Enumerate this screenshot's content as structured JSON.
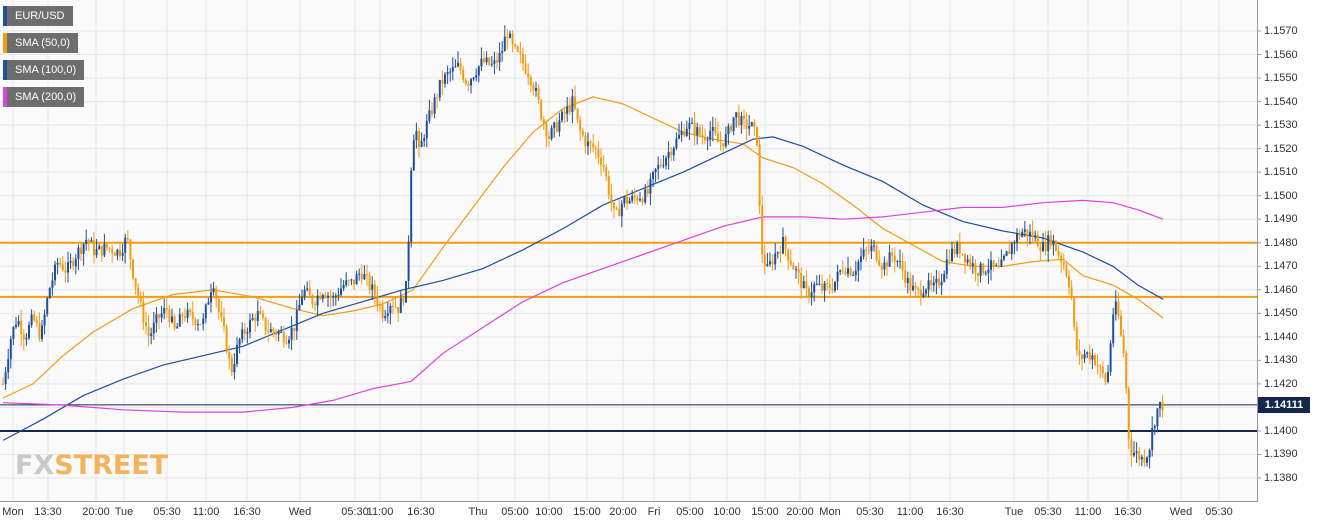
{
  "legend": [
    {
      "label": "EUR/USD",
      "color": "#1f4e9c"
    },
    {
      "label": "SMA (50,0)",
      "color": "#f39c12"
    },
    {
      "label": "SMA (100,0)",
      "color": "#1f4e9c"
    },
    {
      "label": "SMA (200,0)",
      "color": "#e040e0"
    }
  ],
  "watermark": {
    "part1": "FX",
    "part2": "STREET"
  },
  "price_tag": "1.14111",
  "colors": {
    "bullish": "#1f4e9c",
    "bearish": "#f39c12",
    "sma50": "#f39c12",
    "sma100": "#1f4e9c",
    "sma200": "#e040e0",
    "resistance": "#f39c12",
    "support": "#13294b",
    "grid": "#e6e6e6"
  },
  "chart_data": {
    "type": "line",
    "title": "",
    "xlabel": "",
    "ylabel": "",
    "symbol": "EUR/USD",
    "ylim": [
      1.1372,
      1.1585
    ],
    "y_ticks": [
      "1.1570",
      "1.1560",
      "1.1550",
      "1.1540",
      "1.1530",
      "1.1520",
      "1.1510",
      "1.1500",
      "1.1490",
      "1.1480",
      "1.1470",
      "1.1460",
      "1.1450",
      "1.1440",
      "1.1430",
      "1.1420",
      "1.1410",
      "1.1400",
      "1.1390",
      "1.1380"
    ],
    "x_ticks": [
      "Mon",
      "13:30",
      "20:00",
      "Tue",
      "05:30",
      "11:00",
      "16:30",
      "Wed",
      "05:30",
      "11:00",
      "16:30",
      "Thu",
      "05:00",
      "10:00",
      "15:00",
      "20:00",
      "Fri",
      "05:00",
      "10:00",
      "15:00",
      "20:00",
      "Mon",
      "05:30",
      "11:00",
      "16:30",
      "Tue",
      "05:30",
      "11:00",
      "16:30",
      "Wed",
      "05:30"
    ],
    "grid": true,
    "legend_position": "top-left",
    "last_price": 1.14111,
    "horizontal_levels": [
      {
        "name": "resistance",
        "value": 1.148
      },
      {
        "name": "resistance",
        "value": 1.1457
      },
      {
        "name": "support",
        "value": 1.14
      },
      {
        "name": "last-price",
        "value": 1.14111
      }
    ],
    "price_path": [
      {
        "t": 0,
        "p": 1.142
      },
      {
        "t": 8,
        "p": 1.144
      },
      {
        "t": 14,
        "p": 1.1448
      },
      {
        "t": 22,
        "p": 1.144
      },
      {
        "t": 30,
        "p": 1.1448
      },
      {
        "t": 38,
        "p": 1.144
      },
      {
        "t": 46,
        "p": 1.146
      },
      {
        "t": 55,
        "p": 1.1472
      },
      {
        "t": 64,
        "p": 1.1468
      },
      {
        "t": 73,
        "p": 1.1475
      },
      {
        "t": 84,
        "p": 1.1482
      },
      {
        "t": 92,
        "p": 1.1476
      },
      {
        "t": 104,
        "p": 1.1478
      },
      {
        "t": 116,
        "p": 1.1476
      },
      {
        "t": 124,
        "p": 1.1482
      },
      {
        "t": 131,
        "p": 1.1465
      },
      {
        "t": 138,
        "p": 1.1452
      },
      {
        "t": 146,
        "p": 1.144
      },
      {
        "t": 155,
        "p": 1.1448
      },
      {
        "t": 164,
        "p": 1.1452
      },
      {
        "t": 172,
        "p": 1.1442
      },
      {
        "t": 180,
        "p": 1.145
      },
      {
        "t": 190,
        "p": 1.1448
      },
      {
        "t": 200,
        "p": 1.1446
      },
      {
        "t": 210,
        "p": 1.1465
      },
      {
        "t": 216,
        "p": 1.145
      },
      {
        "t": 222,
        "p": 1.144
      },
      {
        "t": 228,
        "p": 1.1425
      },
      {
        "t": 236,
        "p": 1.1438
      },
      {
        "t": 244,
        "p": 1.1444
      },
      {
        "t": 254,
        "p": 1.145
      },
      {
        "t": 264,
        "p": 1.1443
      },
      {
        "t": 274,
        "p": 1.1442
      },
      {
        "t": 284,
        "p": 1.144
      },
      {
        "t": 292,
        "p": 1.1445
      },
      {
        "t": 300,
        "p": 1.146
      },
      {
        "t": 310,
        "p": 1.1455
      },
      {
        "t": 320,
        "p": 1.146
      },
      {
        "t": 330,
        "p": 1.1456
      },
      {
        "t": 340,
        "p": 1.1462
      },
      {
        "t": 350,
        "p": 1.1463
      },
      {
        "t": 358,
        "p": 1.1468
      },
      {
        "t": 366,
        "p": 1.1462
      },
      {
        "t": 372,
        "p": 1.1458
      },
      {
        "t": 380,
        "p": 1.145
      },
      {
        "t": 388,
        "p": 1.1455
      },
      {
        "t": 396,
        "p": 1.1452
      },
      {
        "t": 404,
        "p": 1.1462
      },
      {
        "t": 408,
        "p": 1.1512
      },
      {
        "t": 412,
        "p": 1.1532
      },
      {
        "t": 416,
        "p": 1.1518
      },
      {
        "t": 422,
        "p": 1.1528
      },
      {
        "t": 430,
        "p": 1.1538
      },
      {
        "t": 438,
        "p": 1.1548
      },
      {
        "t": 446,
        "p": 1.1552
      },
      {
        "t": 456,
        "p": 1.1555
      },
      {
        "t": 464,
        "p": 1.1548
      },
      {
        "t": 472,
        "p": 1.1553
      },
      {
        "t": 480,
        "p": 1.1557
      },
      {
        "t": 490,
        "p": 1.1555
      },
      {
        "t": 498,
        "p": 1.156
      },
      {
        "t": 504,
        "p": 1.157
      },
      {
        "t": 510,
        "p": 1.1562
      },
      {
        "t": 518,
        "p": 1.1558
      },
      {
        "t": 526,
        "p": 1.1552
      },
      {
        "t": 532,
        "p": 1.1545
      },
      {
        "t": 538,
        "p": 1.1535
      },
      {
        "t": 546,
        "p": 1.1525
      },
      {
        "t": 554,
        "p": 1.153
      },
      {
        "t": 562,
        "p": 1.1535
      },
      {
        "t": 570,
        "p": 1.154
      },
      {
        "t": 576,
        "p": 1.1528
      },
      {
        "t": 584,
        "p": 1.1522
      },
      {
        "t": 592,
        "p": 1.152
      },
      {
        "t": 600,
        "p": 1.1514
      },
      {
        "t": 606,
        "p": 1.1502
      },
      {
        "t": 612,
        "p": 1.149
      },
      {
        "t": 620,
        "p": 1.1498
      },
      {
        "t": 628,
        "p": 1.1498
      },
      {
        "t": 636,
        "p": 1.15
      },
      {
        "t": 644,
        "p": 1.15
      },
      {
        "t": 652,
        "p": 1.151
      },
      {
        "t": 660,
        "p": 1.1515
      },
      {
        "t": 668,
        "p": 1.152
      },
      {
        "t": 676,
        "p": 1.1525
      },
      {
        "t": 684,
        "p": 1.153
      },
      {
        "t": 692,
        "p": 1.1528
      },
      {
        "t": 700,
        "p": 1.1525
      },
      {
        "t": 708,
        "p": 1.1528
      },
      {
        "t": 716,
        "p": 1.1522
      },
      {
        "t": 724,
        "p": 1.1525
      },
      {
        "t": 732,
        "p": 1.1535
      },
      {
        "t": 740,
        "p": 1.153
      },
      {
        "t": 748,
        "p": 1.153
      },
      {
        "t": 754,
        "p": 1.1524
      },
      {
        "t": 758,
        "p": 1.1478
      },
      {
        "t": 764,
        "p": 1.1468
      },
      {
        "t": 772,
        "p": 1.1475
      },
      {
        "t": 780,
        "p": 1.148
      },
      {
        "t": 788,
        "p": 1.1472
      },
      {
        "t": 796,
        "p": 1.1465
      },
      {
        "t": 804,
        "p": 1.1458
      },
      {
        "t": 812,
        "p": 1.1462
      },
      {
        "t": 820,
        "p": 1.146
      },
      {
        "t": 830,
        "p": 1.1462
      },
      {
        "t": 840,
        "p": 1.147
      },
      {
        "t": 850,
        "p": 1.1468
      },
      {
        "t": 860,
        "p": 1.1475
      },
      {
        "t": 870,
        "p": 1.1478
      },
      {
        "t": 880,
        "p": 1.147
      },
      {
        "t": 890,
        "p": 1.1475
      },
      {
        "t": 898,
        "p": 1.147
      },
      {
        "t": 906,
        "p": 1.1462
      },
      {
        "t": 914,
        "p": 1.1458
      },
      {
        "t": 922,
        "p": 1.1462
      },
      {
        "t": 930,
        "p": 1.146
      },
      {
        "t": 938,
        "p": 1.1465
      },
      {
        "t": 946,
        "p": 1.1475
      },
      {
        "t": 956,
        "p": 1.1478
      },
      {
        "t": 966,
        "p": 1.1472
      },
      {
        "t": 976,
        "p": 1.1468
      },
      {
        "t": 986,
        "p": 1.147
      },
      {
        "t": 996,
        "p": 1.1468
      },
      {
        "t": 1004,
        "p": 1.1475
      },
      {
        "t": 1012,
        "p": 1.1482
      },
      {
        "t": 1020,
        "p": 1.1485
      },
      {
        "t": 1030,
        "p": 1.1483
      },
      {
        "t": 1040,
        "p": 1.1478
      },
      {
        "t": 1048,
        "p": 1.1482
      },
      {
        "t": 1056,
        "p": 1.1475
      },
      {
        "t": 1062,
        "p": 1.147
      },
      {
        "t": 1068,
        "p": 1.146
      },
      {
        "t": 1072,
        "p": 1.1438
      },
      {
        "t": 1076,
        "p": 1.143
      },
      {
        "t": 1082,
        "p": 1.1433
      },
      {
        "t": 1090,
        "p": 1.1432
      },
      {
        "t": 1098,
        "p": 1.1425
      },
      {
        "t": 1104,
        "p": 1.142
      },
      {
        "t": 1110,
        "p": 1.145
      },
      {
        "t": 1114,
        "p": 1.1453
      },
      {
        "t": 1118,
        "p": 1.144
      },
      {
        "t": 1122,
        "p": 1.143
      },
      {
        "t": 1125,
        "p": 1.14
      },
      {
        "t": 1128,
        "p": 1.1392
      },
      {
        "t": 1134,
        "p": 1.139
      },
      {
        "t": 1140,
        "p": 1.1388
      },
      {
        "t": 1146,
        "p": 1.1392
      },
      {
        "t": 1150,
        "p": 1.1402
      },
      {
        "t": 1155,
        "p": 1.141
      },
      {
        "t": 1160,
        "p": 1.1411
      }
    ],
    "series": [
      {
        "name": "SMA (50,0)",
        "color": "#f39c12",
        "points": [
          {
            "t": 0,
            "p": 1.1414
          },
          {
            "t": 30,
            "p": 1.142
          },
          {
            "t": 60,
            "p": 1.1432
          },
          {
            "t": 90,
            "p": 1.1442
          },
          {
            "t": 130,
            "p": 1.1452
          },
          {
            "t": 170,
            "p": 1.1458
          },
          {
            "t": 210,
            "p": 1.146
          },
          {
            "t": 250,
            "p": 1.1457
          },
          {
            "t": 290,
            "p": 1.1452
          },
          {
            "t": 320,
            "p": 1.1449
          },
          {
            "t": 350,
            "p": 1.1451
          },
          {
            "t": 380,
            "p": 1.1454
          },
          {
            "t": 410,
            "p": 1.146
          },
          {
            "t": 440,
            "p": 1.1478
          },
          {
            "t": 470,
            "p": 1.1495
          },
          {
            "t": 500,
            "p": 1.1512
          },
          {
            "t": 530,
            "p": 1.1527
          },
          {
            "t": 560,
            "p": 1.1537
          },
          {
            "t": 590,
            "p": 1.1542
          },
          {
            "t": 620,
            "p": 1.1539
          },
          {
            "t": 650,
            "p": 1.1533
          },
          {
            "t": 680,
            "p": 1.1527
          },
          {
            "t": 710,
            "p": 1.1524
          },
          {
            "t": 740,
            "p": 1.1522
          },
          {
            "t": 760,
            "p": 1.1516
          },
          {
            "t": 790,
            "p": 1.1512
          },
          {
            "t": 820,
            "p": 1.1505
          },
          {
            "t": 850,
            "p": 1.1496
          },
          {
            "t": 880,
            "p": 1.1486
          },
          {
            "t": 910,
            "p": 1.1479
          },
          {
            "t": 940,
            "p": 1.1472
          },
          {
            "t": 970,
            "p": 1.147
          },
          {
            "t": 1000,
            "p": 1.147
          },
          {
            "t": 1030,
            "p": 1.1472
          },
          {
            "t": 1060,
            "p": 1.1473
          },
          {
            "t": 1080,
            "p": 1.1466
          },
          {
            "t": 1110,
            "p": 1.1462
          },
          {
            "t": 1135,
            "p": 1.1456
          },
          {
            "t": 1160,
            "p": 1.1448
          }
        ]
      },
      {
        "name": "SMA (100,0)",
        "color": "#1f4e9c",
        "points": [
          {
            "t": 0,
            "p": 1.1396
          },
          {
            "t": 40,
            "p": 1.1405
          },
          {
            "t": 80,
            "p": 1.1415
          },
          {
            "t": 120,
            "p": 1.1422
          },
          {
            "t": 160,
            "p": 1.1428
          },
          {
            "t": 200,
            "p": 1.1432
          },
          {
            "t": 240,
            "p": 1.1436
          },
          {
            "t": 280,
            "p": 1.1443
          },
          {
            "t": 320,
            "p": 1.145
          },
          {
            "t": 360,
            "p": 1.1455
          },
          {
            "t": 400,
            "p": 1.146
          },
          {
            "t": 440,
            "p": 1.1464
          },
          {
            "t": 480,
            "p": 1.1469
          },
          {
            "t": 520,
            "p": 1.1477
          },
          {
            "t": 560,
            "p": 1.1486
          },
          {
            "t": 600,
            "p": 1.1496
          },
          {
            "t": 640,
            "p": 1.1503
          },
          {
            "t": 680,
            "p": 1.151
          },
          {
            "t": 720,
            "p": 1.1518
          },
          {
            "t": 750,
            "p": 1.1524
          },
          {
            "t": 770,
            "p": 1.1525
          },
          {
            "t": 800,
            "p": 1.1521
          },
          {
            "t": 840,
            "p": 1.1513
          },
          {
            "t": 880,
            "p": 1.1506
          },
          {
            "t": 920,
            "p": 1.1496
          },
          {
            "t": 960,
            "p": 1.1489
          },
          {
            "t": 1000,
            "p": 1.1485
          },
          {
            "t": 1040,
            "p": 1.1482
          },
          {
            "t": 1080,
            "p": 1.1476
          },
          {
            "t": 1110,
            "p": 1.147
          },
          {
            "t": 1135,
            "p": 1.1462
          },
          {
            "t": 1160,
            "p": 1.1456
          }
        ]
      },
      {
        "name": "SMA (200,0)",
        "color": "#e040e0",
        "points": [
          {
            "t": 0,
            "p": 1.1412
          },
          {
            "t": 60,
            "p": 1.1411
          },
          {
            "t": 120,
            "p": 1.1409
          },
          {
            "t": 180,
            "p": 1.1408
          },
          {
            "t": 240,
            "p": 1.1408
          },
          {
            "t": 290,
            "p": 1.141
          },
          {
            "t": 330,
            "p": 1.1413
          },
          {
            "t": 370,
            "p": 1.1418
          },
          {
            "t": 408,
            "p": 1.1421
          },
          {
            "t": 440,
            "p": 1.1433
          },
          {
            "t": 480,
            "p": 1.1444
          },
          {
            "t": 520,
            "p": 1.1455
          },
          {
            "t": 560,
            "p": 1.1463
          },
          {
            "t": 600,
            "p": 1.1469
          },
          {
            "t": 640,
            "p": 1.1475
          },
          {
            "t": 680,
            "p": 1.1481
          },
          {
            "t": 720,
            "p": 1.1487
          },
          {
            "t": 760,
            "p": 1.1491
          },
          {
            "t": 800,
            "p": 1.1491
          },
          {
            "t": 840,
            "p": 1.149
          },
          {
            "t": 880,
            "p": 1.1491
          },
          {
            "t": 920,
            "p": 1.1493
          },
          {
            "t": 960,
            "p": 1.1495
          },
          {
            "t": 1000,
            "p": 1.1495
          },
          {
            "t": 1040,
            "p": 1.1497
          },
          {
            "t": 1080,
            "p": 1.1498
          },
          {
            "t": 1110,
            "p": 1.1497
          },
          {
            "t": 1135,
            "p": 1.1494
          },
          {
            "t": 1160,
            "p": 1.149
          }
        ]
      }
    ]
  }
}
